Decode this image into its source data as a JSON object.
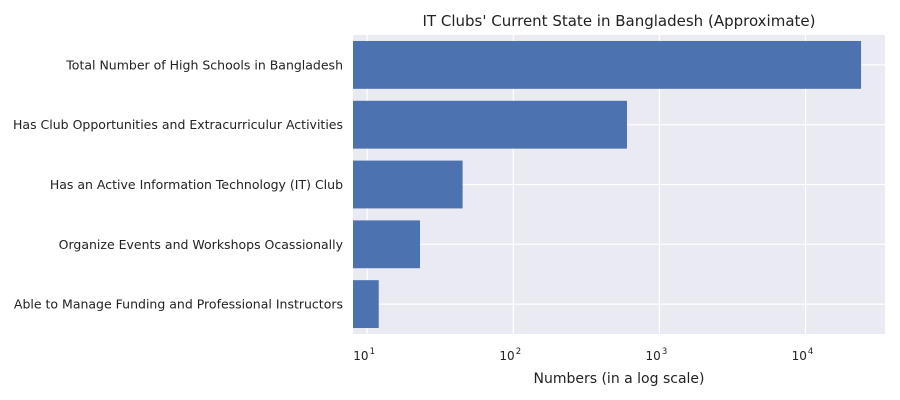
{
  "chart_data": {
    "type": "bar",
    "orientation": "horizontal",
    "title": "IT Clubs' Current State in Bangladesh (Approximate)",
    "xlabel": "Numbers (in a log scale)",
    "ylabel": "",
    "x_scale": "log",
    "xlim": [
      8,
      35000
    ],
    "x_ticks": [
      {
        "base": "10",
        "exp": "1",
        "value": 10
      },
      {
        "base": "10",
        "exp": "2",
        "value": 100
      },
      {
        "base": "10",
        "exp": "3",
        "value": 1000
      },
      {
        "base": "10",
        "exp": "4",
        "value": 10000
      }
    ],
    "categories": [
      "Total Number of High Schools in Bangladesh",
      "Has Club Opportunities and Extracurriculur Activities",
      "Has an Active Information Technology (IT) Club",
      "Organize Events and Workshops Ocassionally",
      "Able to Manage Funding and Professional Instructors"
    ],
    "values": [
      24000,
      600,
      45,
      23,
      12
    ],
    "bar_color": "#4c72b0",
    "background_color": "#eaeaf2",
    "grid": true,
    "legend": "none"
  }
}
